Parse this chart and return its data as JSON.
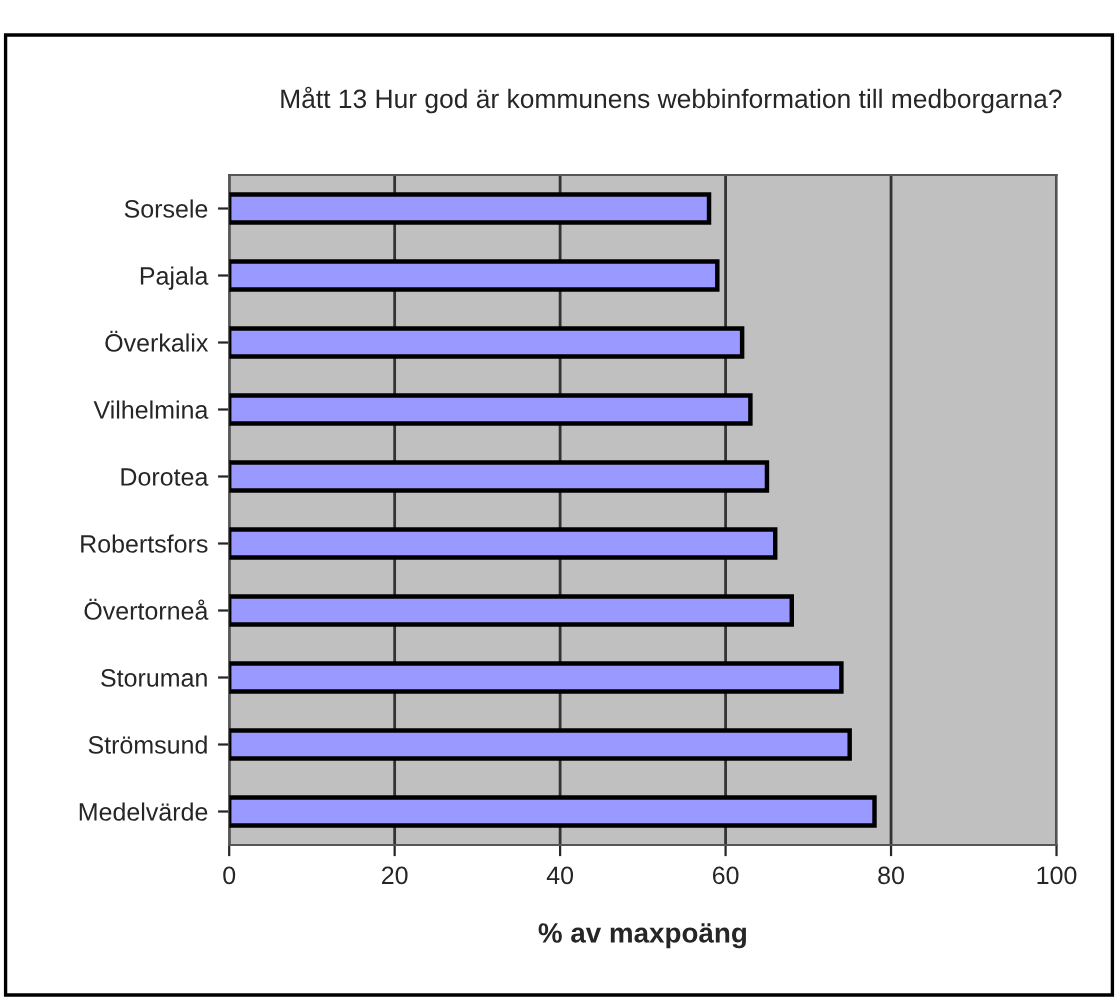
{
  "chart_data": {
    "type": "bar",
    "orientation": "horizontal",
    "title": "Mått 13 Hur god är kommunens webbinformation till medborgarna?",
    "xlabel": "% av maxpoäng",
    "categories": [
      "Sorsele",
      "Pajala",
      "Överkalix",
      "Vilhelmina",
      "Dorotea",
      "Robertsfors",
      "Övertorneå",
      "Storuman",
      "Strömsund",
      "Medelvärde"
    ],
    "values": [
      58,
      59,
      62,
      63,
      65,
      66,
      68,
      74,
      75,
      78
    ],
    "color": "#9999ff",
    "xlim": [
      0,
      100
    ],
    "xticks": [
      0,
      20,
      40,
      60,
      80,
      100
    ],
    "grid": "x"
  }
}
